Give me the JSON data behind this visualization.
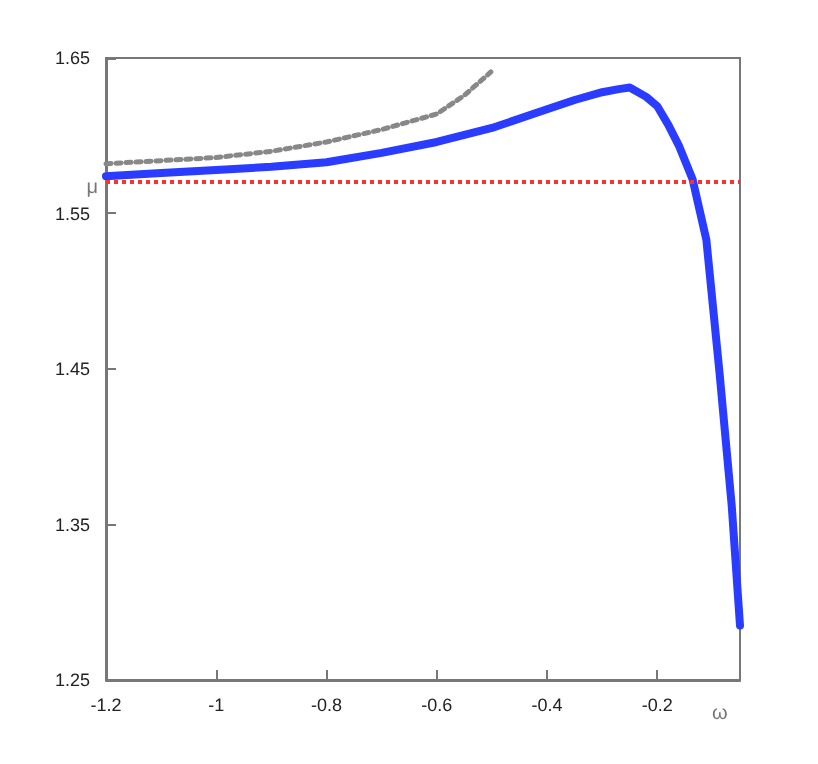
{
  "chart_data": {
    "type": "line",
    "xlabel": "ω",
    "ylabel": "μ",
    "xlim": [
      -1.2,
      -0.05
    ],
    "xticks": [
      -1.2,
      -1,
      -0.8,
      -0.6,
      -0.4,
      -0.2
    ],
    "ylim": [
      1.25,
      1.65
    ],
    "yticks": [
      1.25,
      1.35,
      1.45,
      1.55,
      1.65
    ],
    "grid": false,
    "marker": "none",
    "series": [
      {
        "color": "#2a3cff",
        "line_style": "solid",
        "x": [
          -1.2,
          -1.1,
          -1.0,
          -0.9,
          -0.8,
          -0.7,
          -0.6,
          -0.5,
          -0.4,
          -0.35,
          -0.3,
          -0.27,
          -0.25,
          -0.22,
          -0.2,
          -0.18,
          -0.16,
          -0.136,
          -0.111,
          -0.087,
          -0.065,
          -0.05
        ],
        "values": [
          1.574,
          1.576,
          1.578,
          1.58,
          1.583,
          1.589,
          1.596,
          1.605,
          1.617,
          1.623,
          1.628,
          1.63,
          1.631,
          1.625,
          1.619,
          1.607,
          1.593,
          1.572,
          1.533,
          1.447,
          1.362,
          1.285
        ]
      },
      {
        "color": "#888888",
        "line_style": "dotted",
        "x": [
          -1.2,
          -1.1,
          -1.0,
          -0.9,
          -0.8,
          -0.7,
          -0.6,
          -0.55,
          -0.502
        ],
        "values": [
          1.582,
          1.584,
          1.586,
          1.59,
          1.596,
          1.604,
          1.614,
          1.626,
          1.641
        ]
      }
    ],
    "ref_lines": [
      {
        "axis": "y",
        "value": 1.572,
        "color": "#ff3030",
        "line_style": "dotted"
      }
    ]
  }
}
